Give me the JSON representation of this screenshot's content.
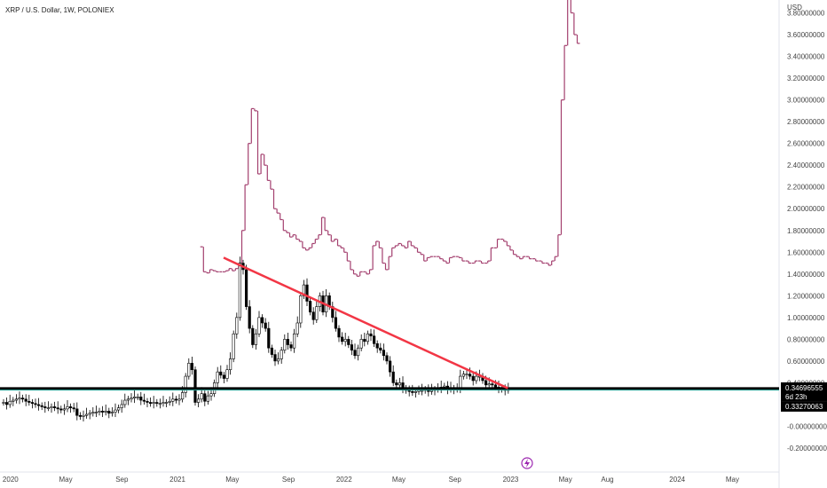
{
  "header": {
    "title": "XRP / U.S. Dollar, 1W, POLONIEX"
  },
  "icons": {
    "event_marker": "lightning-bolt-icon"
  },
  "colors": {
    "candle_body": "#000000",
    "overlay_line": "#a33f6e",
    "trend_line": "#f23645",
    "support_line": "#000000",
    "secondary_line": "#26a69a",
    "event_marker": "#9c27b0"
  },
  "chart_data": {
    "type": "candlestick",
    "title": "XRP / U.S. Dollar, 1W, POLONIEX",
    "currency_label": "USD",
    "ylim": [
      -0.2,
      4.0
    ],
    "y_ticks": [
      "3.80000000",
      "3.60000000",
      "3.40000000",
      "3.20000000",
      "3.00000000",
      "2.80000000",
      "2.60000000",
      "2.40000000",
      "2.20000000",
      "2.00000000",
      "1.80000000",
      "1.60000000",
      "1.40000000",
      "1.20000000",
      "1.00000000",
      "0.80000000",
      "0.60000000",
      "0.40000000",
      "-0.00000000",
      "-0.20000000"
    ],
    "x_ticks": [
      "2020",
      "May",
      "Sep",
      "2021",
      "May",
      "Sep",
      "2022",
      "May",
      "Sep",
      "2023",
      "May",
      "Aug",
      "2024",
      "May"
    ],
    "x_tick_dates": [
      "2020-01-01",
      "2020-05-01",
      "2020-09-01",
      "2021-01-01",
      "2021-05-01",
      "2021-09-01",
      "2022-01-01",
      "2022-05-01",
      "2022-09-01",
      "2023-01-01",
      "2023-05-01",
      "2023-08-01",
      "2024-01-01",
      "2024-05-01"
    ],
    "weekly_closes": [
      0.22,
      0.2,
      0.23,
      0.24,
      0.25,
      0.26,
      0.25,
      0.23,
      0.22,
      0.21,
      0.2,
      0.19,
      0.18,
      0.17,
      0.17,
      0.18,
      0.17,
      0.16,
      0.15,
      0.16,
      0.18,
      0.17,
      0.16,
      0.1,
      0.09,
      0.1,
      0.11,
      0.12,
      0.13,
      0.13,
      0.14,
      0.13,
      0.14,
      0.12,
      0.13,
      0.15,
      0.17,
      0.2,
      0.24,
      0.25,
      0.26,
      0.27,
      0.27,
      0.24,
      0.23,
      0.22,
      0.21,
      0.22,
      0.21,
      0.21,
      0.22,
      0.22,
      0.23,
      0.25,
      0.24,
      0.25,
      0.31,
      0.46,
      0.58,
      0.52,
      0.22,
      0.25,
      0.3,
      0.23,
      0.28,
      0.3,
      0.4,
      0.5,
      0.47,
      0.44,
      0.52,
      0.62,
      0.85,
      1.0,
      1.5,
      1.44,
      1.1,
      0.9,
      0.75,
      0.85,
      1.0,
      0.95,
      0.9,
      0.72,
      0.66,
      0.6,
      0.62,
      0.7,
      0.8,
      0.75,
      0.72,
      0.85,
      0.95,
      1.2,
      1.3,
      1.15,
      1.05,
      0.98,
      1.1,
      1.2,
      1.05,
      1.2,
      1.1,
      1.0,
      0.9,
      0.82,
      0.78,
      0.8,
      0.75,
      0.7,
      0.65,
      0.72,
      0.8,
      0.78,
      0.85,
      0.83,
      0.76,
      0.72,
      0.7,
      0.65,
      0.6,
      0.5,
      0.4,
      0.38,
      0.4,
      0.35,
      0.33,
      0.32,
      0.31,
      0.32,
      0.33,
      0.33,
      0.34,
      0.32,
      0.33,
      0.34,
      0.35,
      0.36,
      0.37,
      0.34,
      0.35,
      0.34,
      0.35,
      0.46,
      0.48,
      0.48,
      0.46,
      0.42,
      0.46,
      0.46,
      0.42,
      0.38,
      0.39,
      0.38,
      0.36,
      0.35,
      0.34,
      0.33,
      0.34
    ],
    "overlay_series": {
      "values": [
        1.65,
        1.42,
        1.41,
        1.44,
        1.43,
        1.42,
        1.42,
        1.42,
        1.43,
        1.45,
        1.43,
        1.45,
        1.5,
        1.8,
        2.22,
        2.6,
        2.92,
        2.9,
        2.32,
        2.5,
        2.4,
        2.26,
        2.18,
        2.0,
        1.96,
        1.9,
        1.8,
        1.78,
        1.74,
        1.76,
        1.72,
        1.7,
        1.64,
        1.62,
        1.64,
        1.68,
        1.72,
        1.76,
        1.92,
        1.8,
        1.76,
        1.7,
        1.72,
        1.66,
        1.64,
        1.6,
        1.52,
        1.44,
        1.4,
        1.38,
        1.42,
        1.42,
        1.4,
        1.44,
        1.66,
        1.7,
        1.64,
        1.5,
        1.44,
        1.56,
        1.64,
        1.66,
        1.68,
        1.66,
        1.64,
        1.7,
        1.66,
        1.64,
        1.6,
        1.58,
        1.52,
        1.55,
        1.56,
        1.56,
        1.56,
        1.54,
        1.52,
        1.5,
        1.55,
        1.56,
        1.56,
        1.55,
        1.52,
        1.52,
        1.5,
        1.5,
        1.52,
        1.52,
        1.5,
        1.5,
        1.52,
        1.64,
        1.64,
        1.72,
        1.72,
        1.7,
        1.66,
        1.62,
        1.58,
        1.56,
        1.54,
        1.56,
        1.56,
        1.54,
        1.54,
        1.52,
        1.52,
        1.5,
        1.5,
        1.48,
        1.52,
        1.56,
        1.76,
        3.0,
        3.5,
        4.0,
        3.8,
        3.6,
        3.52
      ]
    },
    "support_level": 0.34696555,
    "secondary_level": 0.33270063,
    "trendline": {
      "start": {
        "date": "2021-04-12",
        "value": 1.55
      },
      "end": {
        "date": "2022-12-26",
        "value": 0.35
      }
    },
    "price_labels": {
      "current": "0.34696555",
      "countdown": "6d 23h",
      "secondary": "0.33270063"
    },
    "grid": false,
    "legend": "none"
  }
}
